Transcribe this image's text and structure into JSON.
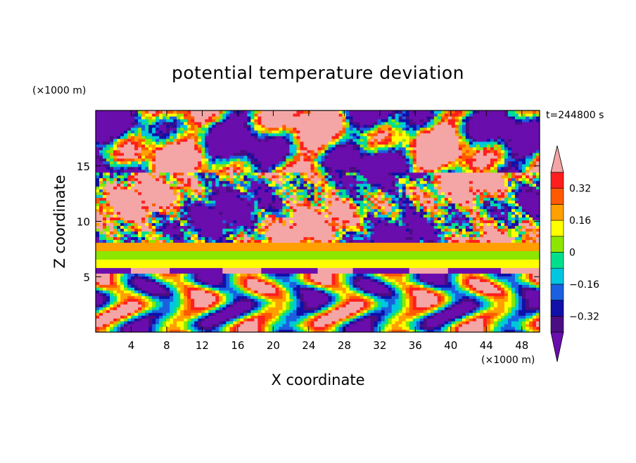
{
  "chart_data": {
    "type": "heatmap",
    "title": "potential temperature deviation",
    "xlabel": "X coordinate",
    "ylabel": "Z coordinate",
    "x_unit": "(×1000 m)",
    "z_unit": "(×1000 m)",
    "time_label": "t=244800 s",
    "xlim": [
      0,
      50
    ],
    "ylim": [
      0,
      20
    ],
    "x_ticks": [
      4,
      8,
      12,
      16,
      20,
      24,
      28,
      32,
      36,
      40,
      44,
      48
    ],
    "y_ticks": [
      5,
      10,
      15
    ],
    "colorbar": {
      "levels": [
        -0.4,
        -0.32,
        -0.24,
        -0.16,
        -0.08,
        0,
        0.08,
        0.16,
        0.24,
        0.32,
        0.4
      ],
      "labeled_levels": [
        "0.32",
        "0.16",
        "0",
        "−0.16",
        "−0.32"
      ],
      "labeled_values": [
        0.32,
        0.16,
        0,
        -0.16,
        -0.32
      ],
      "over_color": "#f4a6a6",
      "under_color": "#6a0dad",
      "bin_colors": [
        "#4b0d82",
        "#1010a8",
        "#1a60e0",
        "#00c6e0",
        "#00e08c",
        "#8ce600",
        "#ffff00",
        "#ffa000",
        "#ff5a00",
        "#ff1e1e"
      ]
    },
    "field_description_layers": [
      {
        "z_range": [
          14.5,
          20
        ],
        "dominant": "alternating over (+0.4) and under (-0.4) patches"
      },
      {
        "z_range": [
          8,
          14.5
        ],
        "dominant": "over and under patches with fine-scale noise"
      },
      {
        "z_range": [
          5.3,
          8
        ],
        "dominant": "near-zero to +0.16 horizontal bands"
      },
      {
        "z_range": [
          0,
          5.3
        ],
        "dominant": "wavy positive and negative structures"
      }
    ]
  }
}
